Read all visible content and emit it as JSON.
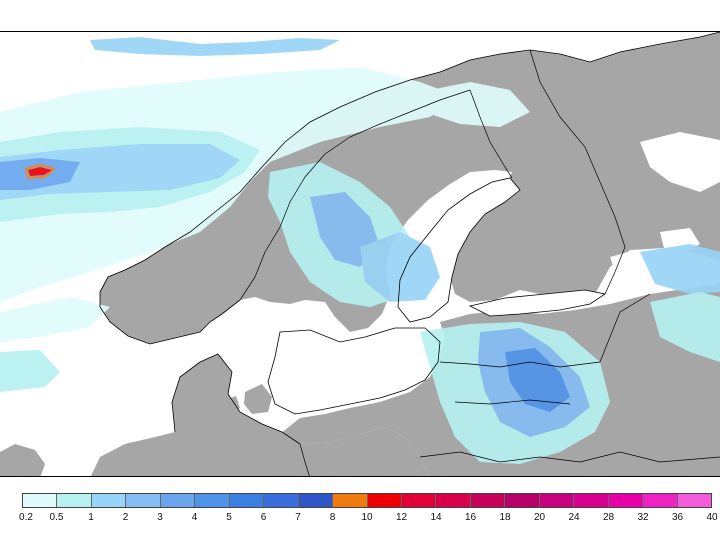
{
  "map": {
    "land_color": "#a6a6a6",
    "water_color": "#ffffff",
    "border_color": "#000000"
  },
  "legend": {
    "colors": [
      "#e0fbfb",
      "#b7f0f0",
      "#98d4f7",
      "#85bdf5",
      "#6aa6ee",
      "#4f94ea",
      "#3c7fe3",
      "#3a6ddc",
      "#2f56c7",
      "#f07a10",
      "#ee0000",
      "#e20038",
      "#d8004a",
      "#c8005a",
      "#b8006b",
      "#c8007e",
      "#d8008f",
      "#e600a6",
      "#ef23c3",
      "#f45cdb"
    ],
    "ticks": [
      "0.2",
      "0.5",
      "1",
      "2",
      "3",
      "4",
      "5",
      "6",
      "7",
      "8",
      "10",
      "12",
      "14",
      "16",
      "18",
      "20",
      "24",
      "28",
      "32",
      "36",
      "40"
    ]
  }
}
